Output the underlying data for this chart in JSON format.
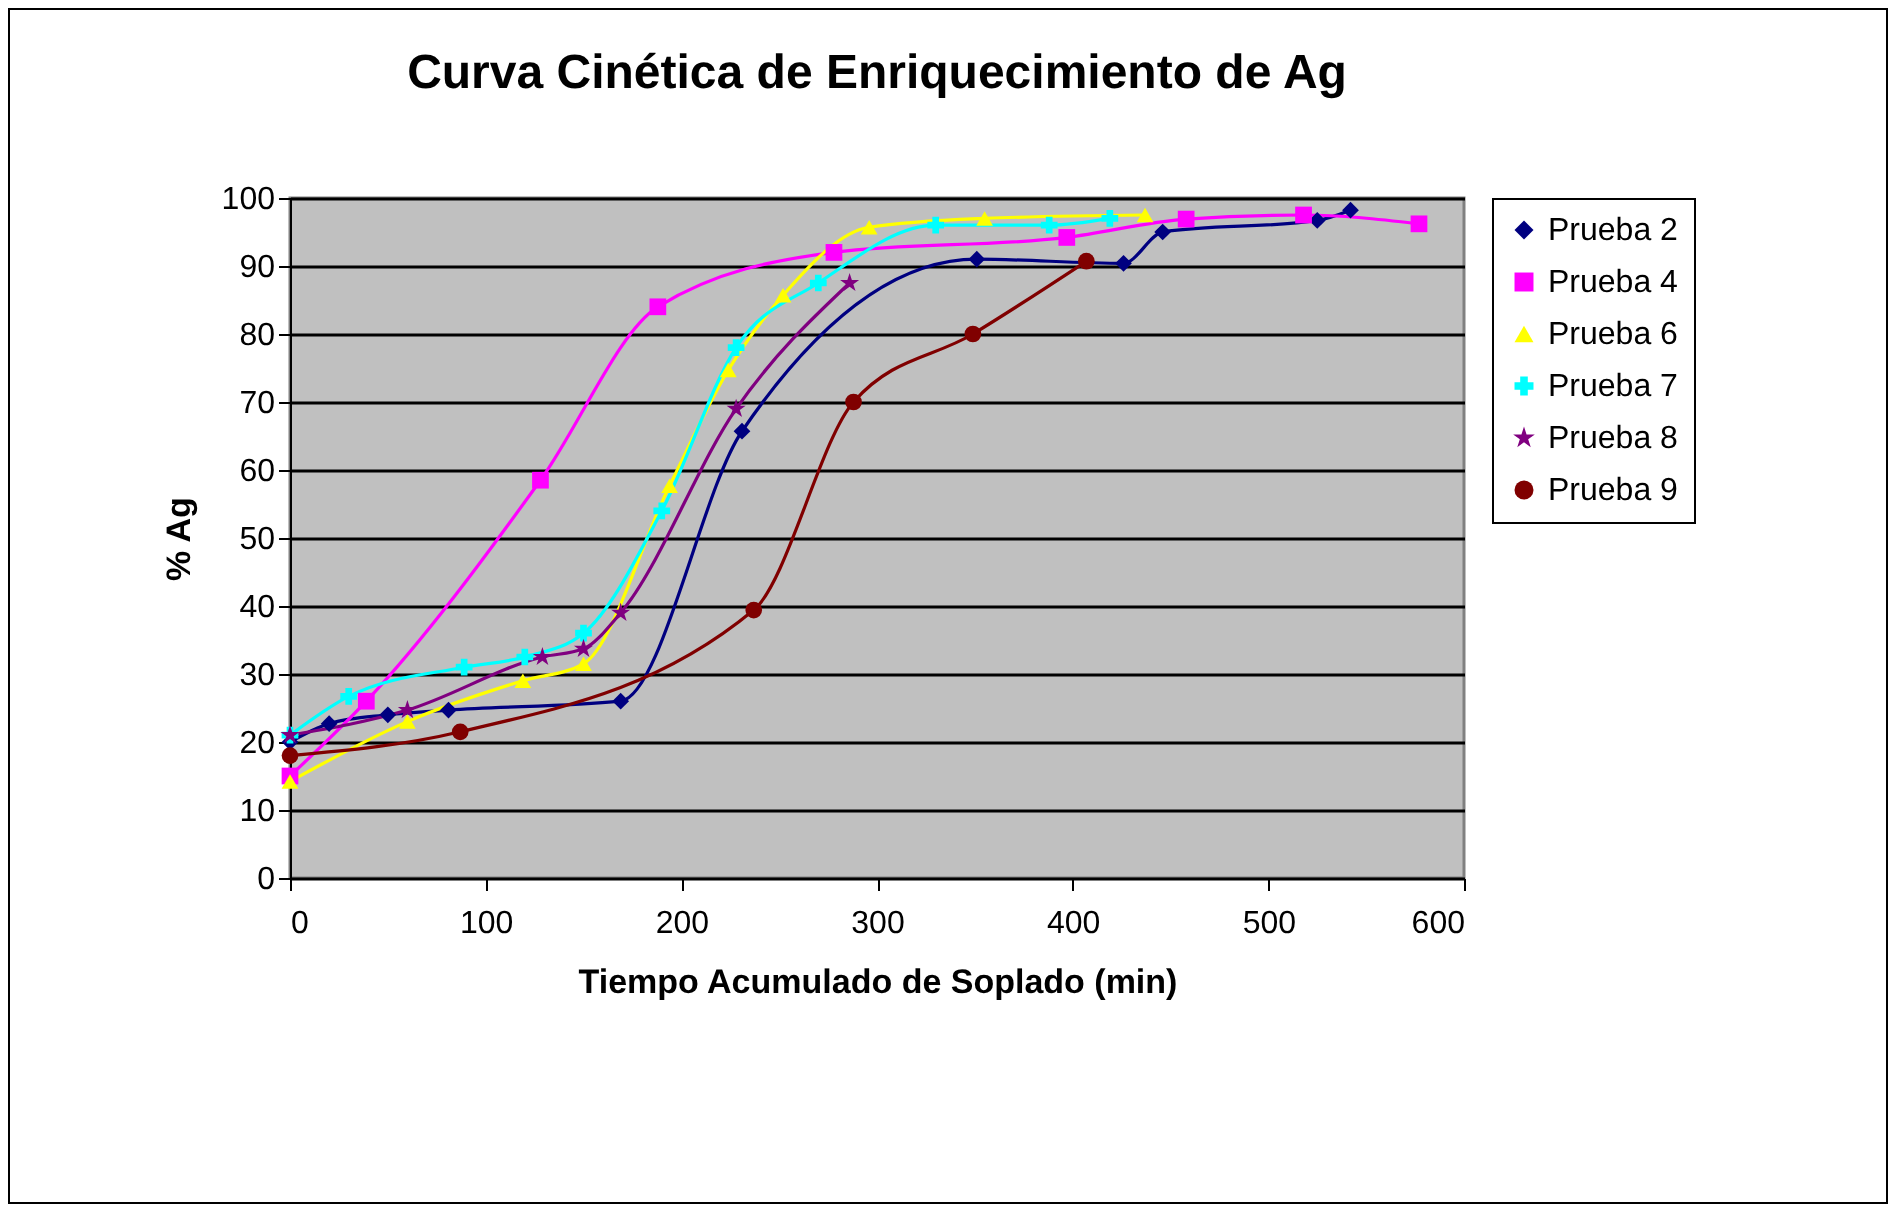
{
  "chart_data": {
    "type": "line",
    "title": "Curva Cinética de Enriquecimiento de Ag",
    "xlabel": "Tiempo Acumulado de Soplado (min)",
    "ylabel": "% Ag",
    "xlim": [
      0,
      600
    ],
    "xticks": [
      0,
      100,
      200,
      300,
      400,
      500,
      600
    ],
    "ylim": [
      0,
      100
    ],
    "yticks": [
      0,
      10,
      20,
      30,
      40,
      50,
      60,
      70,
      80,
      90,
      100
    ],
    "grid": "y",
    "legend": "right",
    "line_style": "solid",
    "series": [
      {
        "name": "Prueba 2",
        "color": "#000080",
        "marker": "diamond",
        "x": [
          0,
          20,
          50,
          81,
          169,
          231,
          351,
          426,
          446,
          525,
          542
        ],
        "values": [
          20,
          22.7,
          24,
          24.7,
          26,
          65.7,
          91,
          90.4,
          95,
          96.7,
          98.2
        ]
      },
      {
        "name": "Prueba 4",
        "color": "#ff00ff",
        "marker": "square",
        "x": [
          0,
          39,
          128,
          188,
          278,
          397,
          458,
          518,
          577
        ],
        "values": [
          15,
          26,
          58.5,
          84,
          92,
          94.2,
          96.9,
          97.5,
          96.2
        ]
      },
      {
        "name": "Prueba 6",
        "color": "#ffff00",
        "marker": "triangle",
        "x": [
          0,
          60,
          119,
          150,
          194,
          224,
          252,
          296,
          355,
          437
        ],
        "values": [
          14.2,
          23,
          29,
          31.5,
          57.7,
          74.7,
          85.7,
          95.7,
          97,
          97.5
        ]
      },
      {
        "name": "Prueba 7",
        "color": "#00ffff",
        "marker": "cross",
        "x": [
          0,
          30,
          89,
          120,
          150,
          190,
          228,
          270,
          330,
          388,
          419
        ],
        "values": [
          21,
          26.7,
          31,
          32.5,
          36,
          54,
          78,
          87.5,
          96,
          96,
          97
        ]
      },
      {
        "name": "Prueba 8",
        "color": "#800080",
        "marker": "star",
        "x": [
          0,
          60,
          129,
          150,
          169,
          228,
          286
        ],
        "values": [
          21,
          24.7,
          32.5,
          33.7,
          39,
          69,
          87.5
        ]
      },
      {
        "name": "Prueba 9",
        "color": "#800000",
        "marker": "circle",
        "x": [
          0,
          87,
          237,
          288,
          349,
          407
        ],
        "values": [
          18,
          21.5,
          39.4,
          70,
          80,
          90.7
        ]
      }
    ]
  }
}
